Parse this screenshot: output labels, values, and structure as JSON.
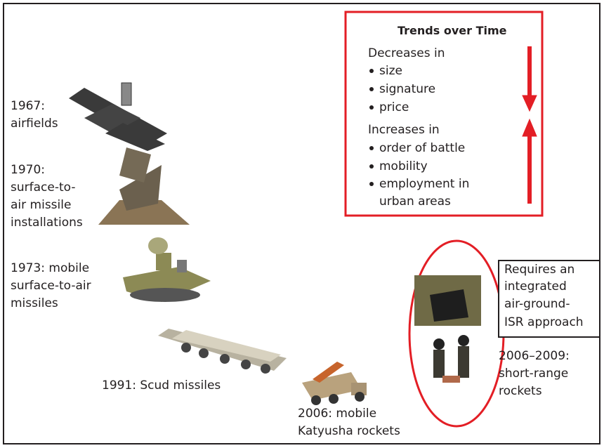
{
  "trends": {
    "title": "Trends over Time",
    "decreases": {
      "heading": "Decreases in",
      "items": [
        "size",
        "signature",
        "price"
      ]
    },
    "increases": {
      "heading": "Increases in",
      "items": [
        "order of battle",
        "mobility",
        "employment in",
        "urban areas"
      ]
    }
  },
  "eras": [
    {
      "label": [
        "1967:",
        "airfields"
      ]
    },
    {
      "label": [
        "1970:",
        "surface-to-",
        "air missile",
        "installations"
      ]
    },
    {
      "label": [
        "1973: mobile",
        "surface-to-air",
        "missiles"
      ]
    },
    {
      "label": [
        "1991: Scud missiles"
      ]
    },
    {
      "label": [
        "2006: mobile",
        "Katyusha rockets"
      ]
    },
    {
      "label": [
        "2006–2009:",
        "short-range",
        "rockets"
      ]
    }
  ],
  "callout": [
    "Requires an",
    "integrated",
    "air-ground-",
    "ISR approach"
  ]
}
